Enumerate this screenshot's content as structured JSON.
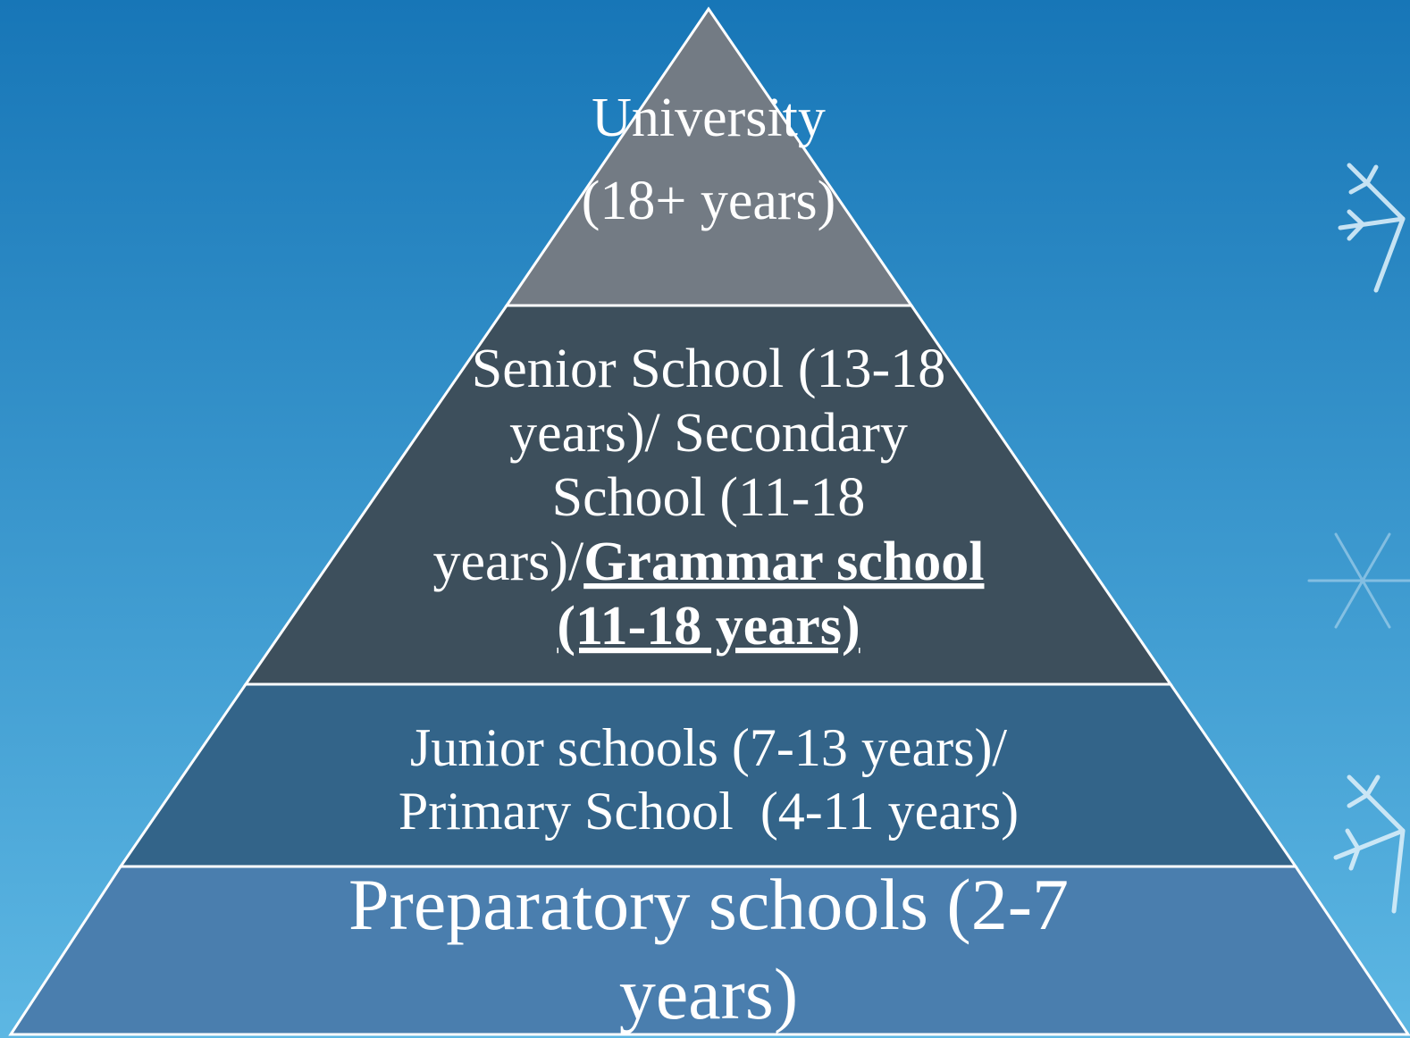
{
  "layers": [
    {
      "lines": [
        "University",
        "(18+ years)"
      ]
    },
    {
      "lines": [
        "Senior School (13-18",
        "years)/ Secondary",
        "School (11-18",
        "years)/"
      ],
      "emphasis": [
        "Grammar school",
        "(11-18 years)"
      ]
    },
    {
      "lines": [
        "Junior schools (7-13 years)/",
        "Primary School  (4-11 years)"
      ]
    },
    {
      "lines": [
        "Preparatory schools (2-7",
        "years)"
      ]
    }
  ]
}
